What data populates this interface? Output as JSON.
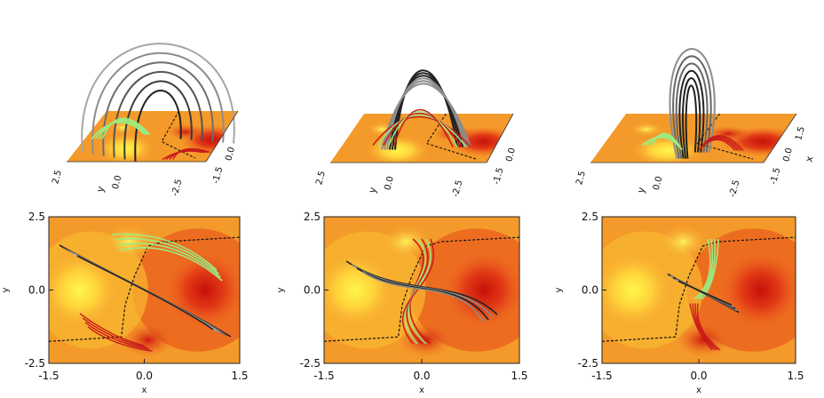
{
  "figure": {
    "panels_3d": [
      {
        "id": "a3d",
        "left_ticks": [
          "2.5",
          "0.0",
          "-2.5"
        ],
        "left_axis": "y",
        "right_ticks": [
          "-1.5",
          "0.0"
        ],
        "right_axis": "",
        "show_x_upper": false
      },
      {
        "id": "b3d",
        "left_ticks": [
          "2.5",
          "0.0",
          "-2.5"
        ],
        "left_axis": "y",
        "right_ticks": [
          "-1.5",
          "0.0"
        ],
        "right_axis": "",
        "show_x_upper": false
      },
      {
        "id": "c3d",
        "left_ticks": [
          "2.5",
          "0.0",
          "-2.5"
        ],
        "left_axis": "y",
        "right_ticks": [
          "-1.5",
          "0.0",
          "1.5"
        ],
        "right_axis": "x",
        "show_x_upper": true
      }
    ],
    "panels_2d": [
      {
        "id": "a2d",
        "x_ticks": [
          "-1.5",
          "0.0",
          "1.5"
        ],
        "y_ticks": [
          "2.5",
          "0.0",
          "-2.5"
        ],
        "xlabel": "x",
        "ylabel": "y"
      },
      {
        "id": "b2d",
        "x_ticks": [
          "-1.5",
          "0.0",
          "1.5"
        ],
        "y_ticks": [
          "2.5",
          "0.0",
          "-2.5"
        ],
        "xlabel": "x",
        "ylabel": "y"
      },
      {
        "id": "c2d",
        "x_ticks": [
          "-1.5",
          "0.0",
          "1.5"
        ],
        "y_ticks": [
          "2.5",
          "0.0",
          "-2.5"
        ],
        "xlabel": "x",
        "ylabel": "y"
      }
    ],
    "colors": {
      "field_dark": "#d11a0a",
      "field_mid": "#f07020",
      "field_bright": "#ffef3a",
      "field_bg": "#f49a2a",
      "line_black": "#222222",
      "line_gray": "#8c8c8c",
      "line_green": "#9bec82",
      "line_red": "#c91a1a",
      "pil": "#111111"
    }
  }
}
